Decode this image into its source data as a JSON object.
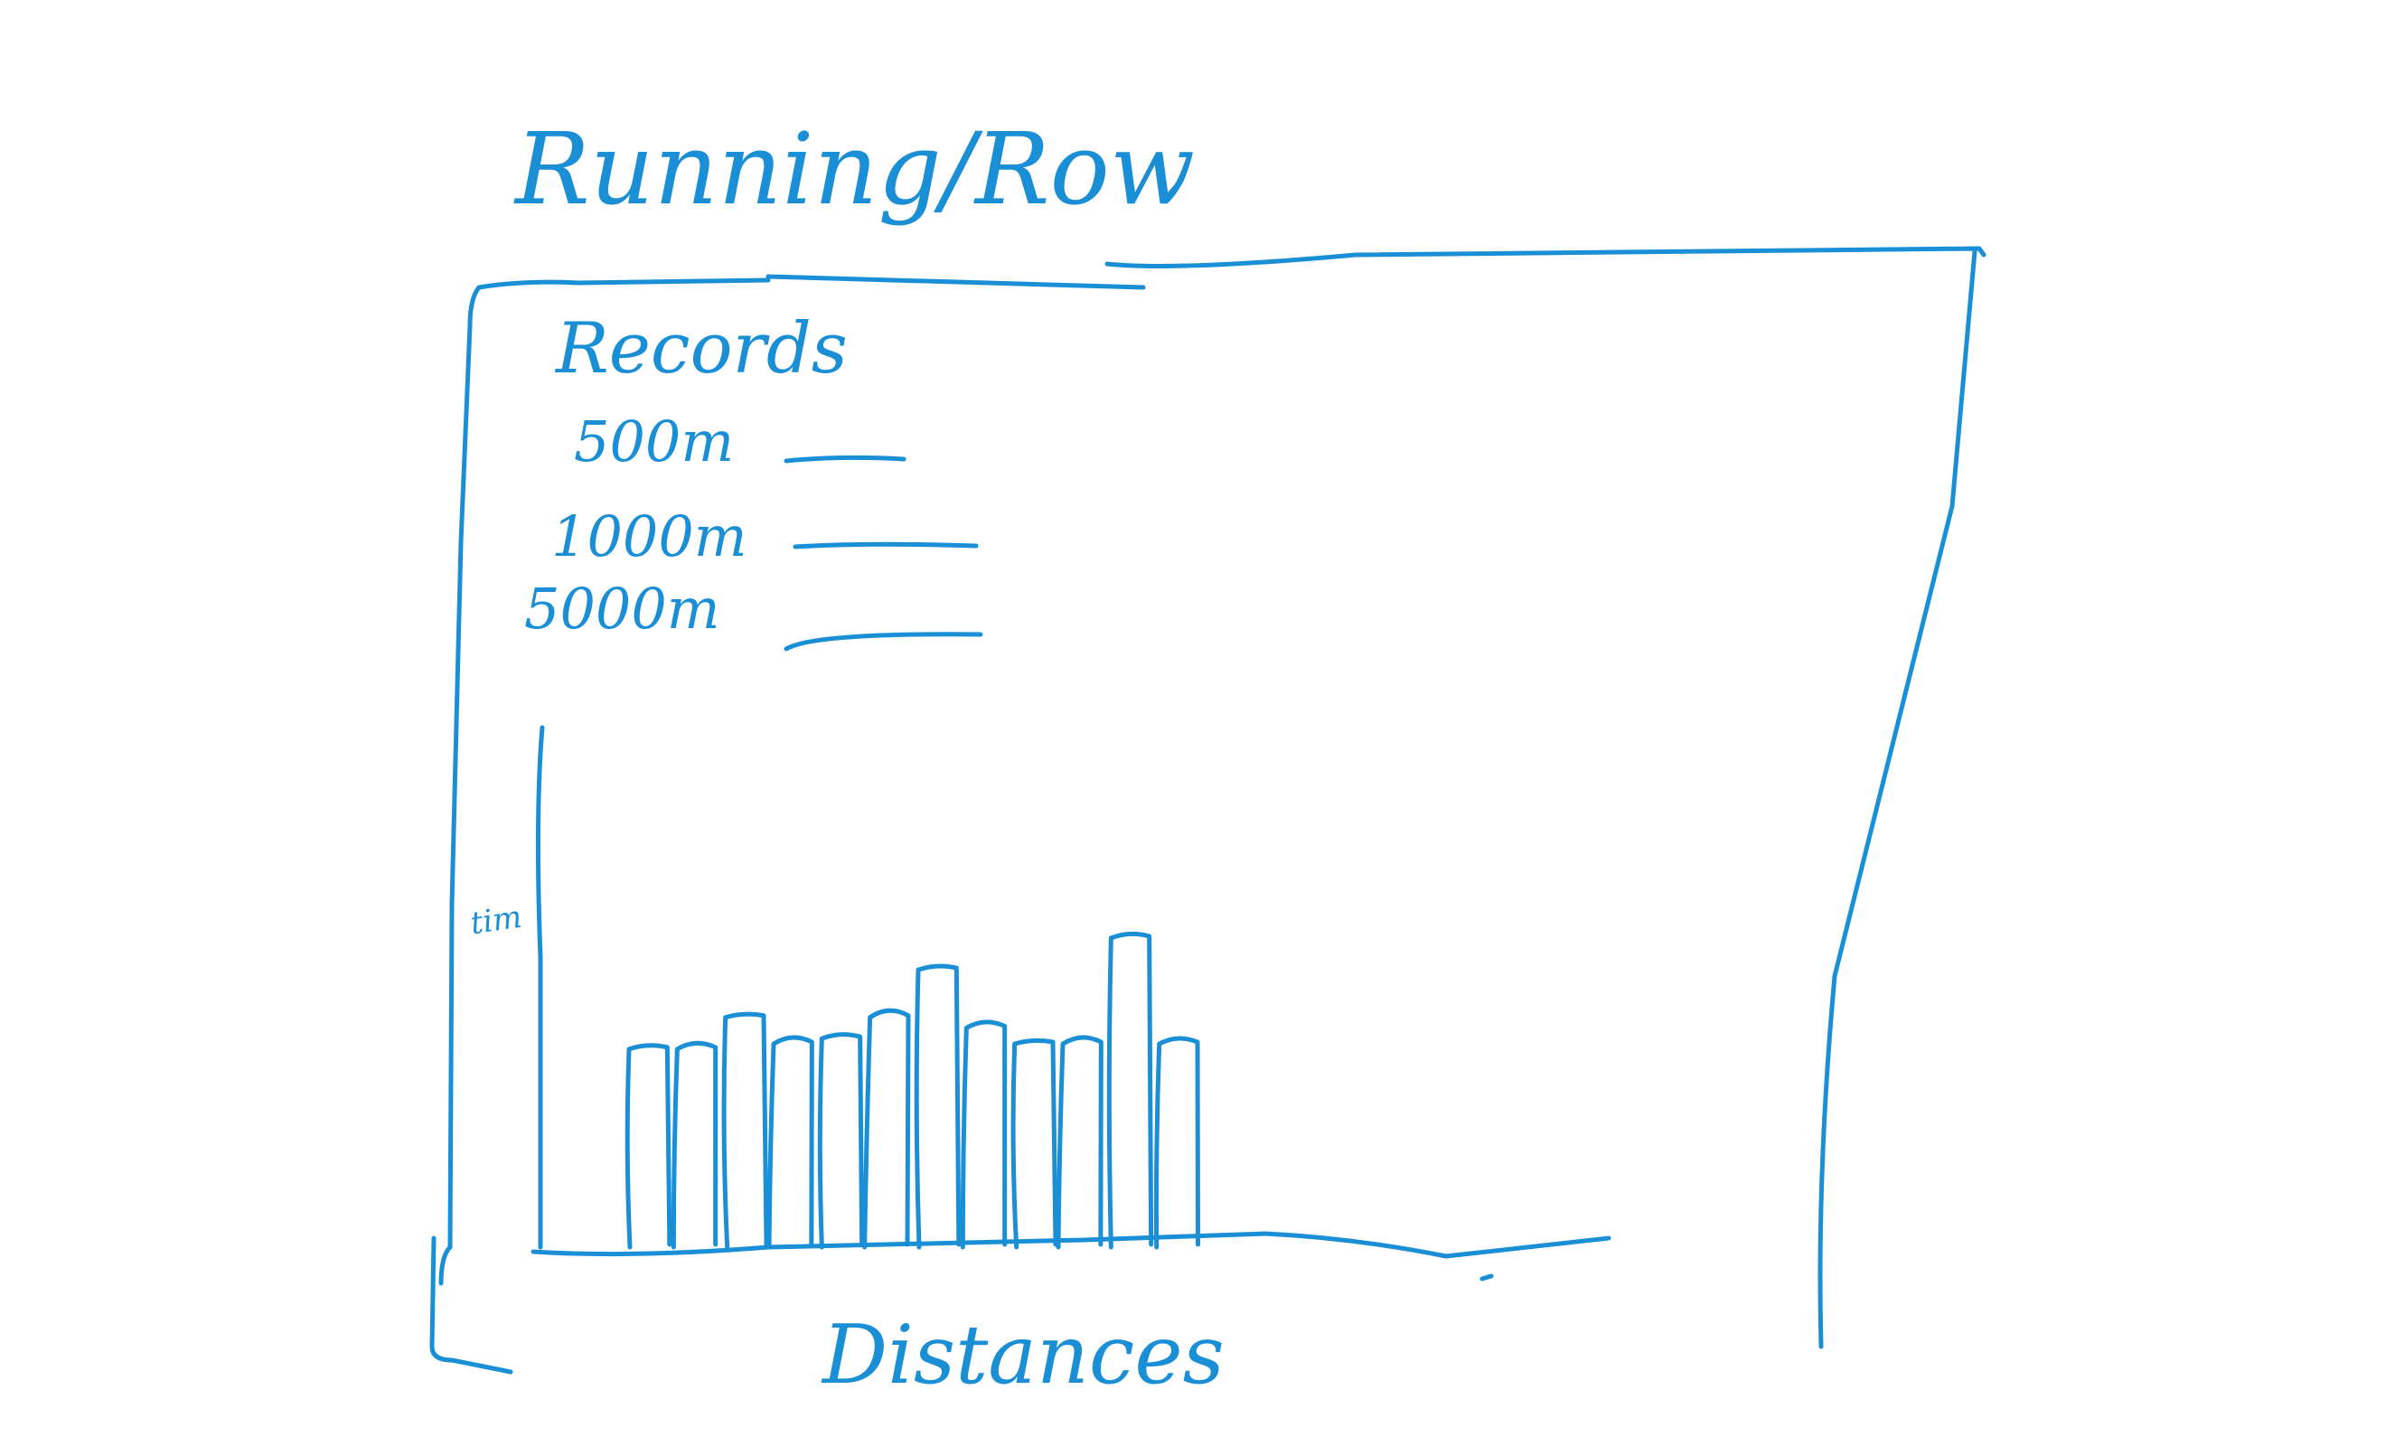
{
  "page": {
    "title": "Running/Row"
  },
  "records": {
    "heading": "Records",
    "items": [
      {
        "label": "500m",
        "value": ""
      },
      {
        "label": "1000m",
        "value": ""
      },
      {
        "label": "5000m",
        "value": ""
      }
    ]
  },
  "chart_data": {
    "type": "bar",
    "title": "",
    "xlabel": "Distances",
    "ylabel": "tim",
    "categories": [
      "",
      "",
      "",
      "",
      "",
      "",
      "",
      "",
      "",
      "",
      "",
      ""
    ],
    "values": [
      3.9,
      3.9,
      4.5,
      4.0,
      4.1,
      4.5,
      5.4,
      4.3,
      4.0,
      4.0,
      6.0,
      4.0
    ],
    "ylim": [
      0,
      10
    ],
    "grid": false
  },
  "colors": {
    "ink": "#1a8fd6",
    "background": "#ffffff"
  }
}
